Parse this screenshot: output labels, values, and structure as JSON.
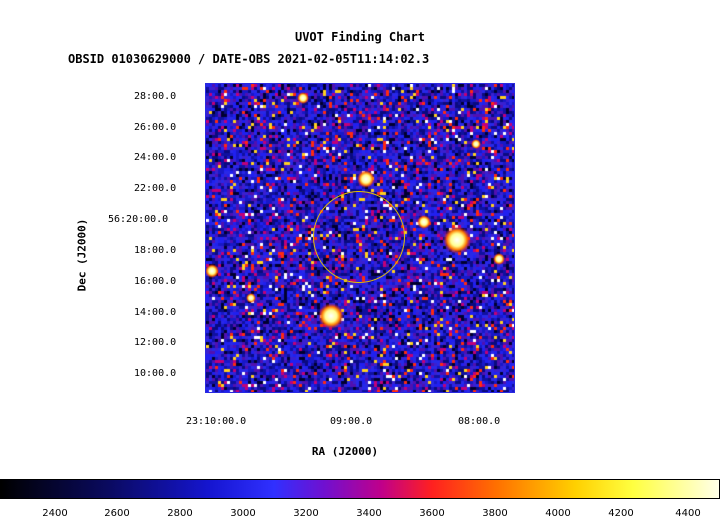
{
  "title": "UVOT Finding Chart",
  "subtitle": "OBSID 01030629000 / DATE-OBS 2021-02-05T11:14:02.3",
  "axes": {
    "ylabel": "Dec (J2000)",
    "xlabel": "RA (J2000)",
    "yticks": [
      "28:00.0",
      "26:00.0",
      "24:00.0",
      "22:00.0",
      "56:20:00.0",
      "18:00.0",
      "16:00.0",
      "14:00.0",
      "12:00.0",
      "10:00.0"
    ],
    "xticks": [
      "23:10:00.0",
      "09:00.0",
      "08:00.0"
    ]
  },
  "colorbar": {
    "ticks": [
      "2400",
      "2600",
      "2800",
      "3000",
      "3200",
      "3400",
      "3600",
      "3800",
      "4000",
      "4200",
      "4400"
    ]
  },
  "colors": {
    "circle": "#e6c200",
    "frame": "#2a2ae0"
  }
}
